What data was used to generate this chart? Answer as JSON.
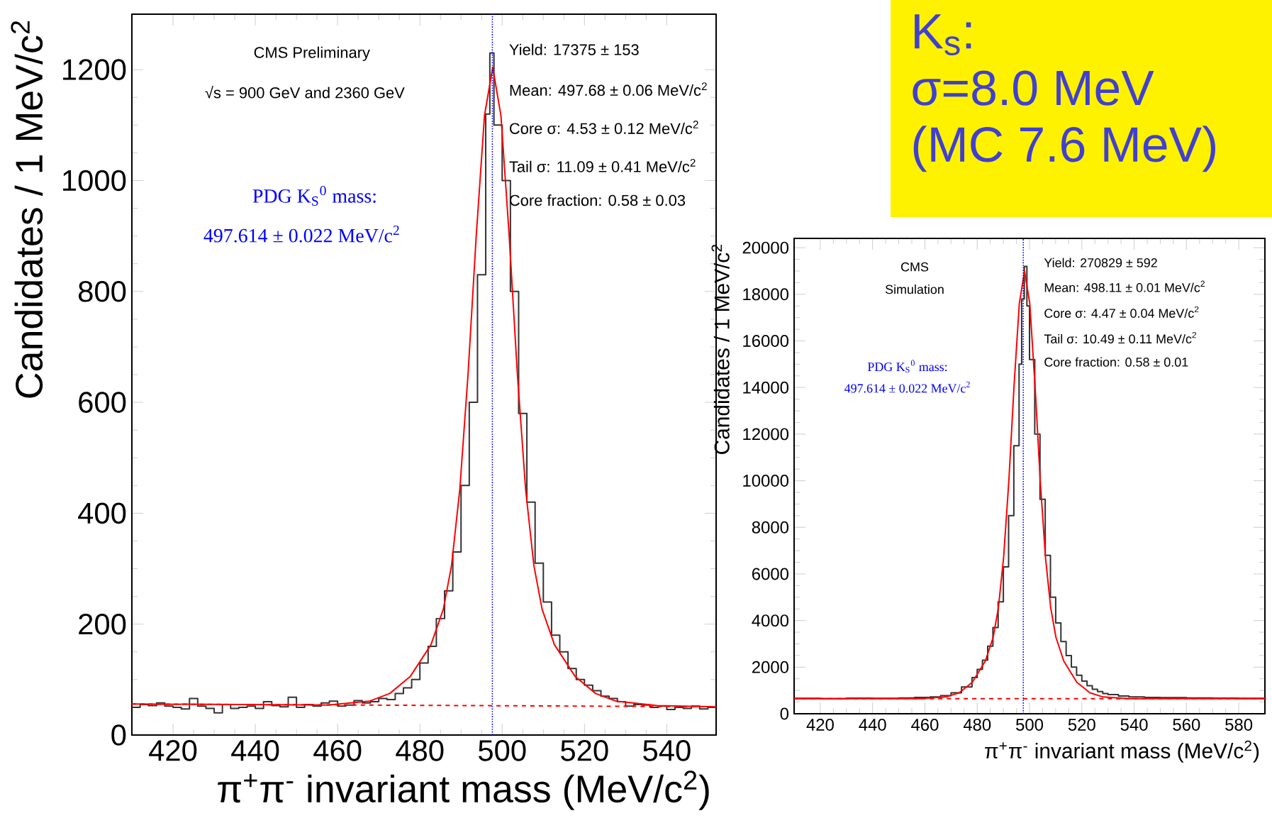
{
  "chart_data": [
    {
      "type": "step",
      "xlabel": "π$^{+}$π$^{-}$ invariant mass (MeV/c$^{2}$)",
      "ylabel": "Candidates / 1 MeV/c$^{2}$",
      "xlim": [
        410,
        552
      ],
      "ylim": [
        0,
        1300
      ],
      "xticks": [
        420,
        440,
        460,
        480,
        500,
        520,
        540
      ],
      "yticks": [
        0,
        200,
        400,
        600,
        800,
        1000,
        1200
      ],
      "series": [
        {
          "type": "step",
          "color": "#333333",
          "x": [
            410,
            412,
            414,
            416,
            418,
            420,
            422,
            424,
            426,
            428,
            430,
            432,
            434,
            436,
            438,
            440,
            442,
            444,
            446,
            448,
            450,
            452,
            454,
            456,
            458,
            460,
            462,
            464,
            466,
            468,
            470,
            472,
            474,
            476,
            478,
            480,
            482,
            484,
            486,
            488,
            490,
            492,
            494,
            496,
            497,
            498,
            500,
            502,
            504,
            506,
            508,
            510,
            512,
            514,
            516,
            518,
            520,
            522,
            524,
            526,
            528,
            530,
            532,
            534,
            536,
            538,
            540,
            542,
            544,
            546,
            548,
            550,
            552
          ],
          "values": [
            50,
            55,
            53,
            58,
            52,
            50,
            47,
            66,
            52,
            48,
            40,
            55,
            48,
            50,
            52,
            48,
            60,
            53,
            51,
            68,
            50,
            55,
            52,
            58,
            61,
            52,
            54,
            62,
            58,
            60,
            66,
            64,
            75,
            85,
            100,
            130,
            160,
            210,
            260,
            330,
            450,
            600,
            830,
            1120,
            1230,
            1100,
            1000,
            800,
            580,
            420,
            310,
            240,
            180,
            150,
            120,
            100,
            90,
            80,
            70,
            66,
            60,
            52,
            55,
            54,
            50,
            52,
            46,
            50,
            48,
            52,
            47,
            50,
            50
          ]
        },
        {
          "type": "line",
          "color": "#ff0000",
          "x": [
            410,
            457.7,
            467.7,
            472.7,
            477.7,
            482.7,
            485.7,
            487.7,
            489.7,
            491.7,
            493.7,
            495.7,
            497.7,
            499.7,
            501.7,
            503.7,
            505.7,
            507.7,
            509.7,
            512.7,
            517.7,
            522.7,
            527.7,
            537.7,
            552
          ],
          "values": [
            56,
            54,
            61,
            75,
            106,
            163,
            227,
            306,
            443,
            650,
            901,
            1117,
            1204,
            1117,
            901,
            650,
            443,
            306,
            227,
            163,
            106,
            75,
            61,
            53,
            51
          ]
        },
        {
          "type": "line",
          "color": "#ff0000",
          "line_style": "dashed",
          "x": [
            410,
            552
          ],
          "values": [
            56,
            51
          ]
        }
      ],
      "ref_lines": [
        {
          "axis": "x",
          "value": 497.614,
          "color": "#0000ff",
          "line_style": "dotted"
        }
      ],
      "annotations": [
        "CMS Preliminary",
        "√s = 900 GeV and 2360 GeV",
        "PDG K$_{S}$$^{0}$ mass:",
        "497.614 ± 0.022 MeV/c$^{2}$",
        "Yield: 17375 ± 153",
        "Mean: 497.68 ± 0.06 MeV/c$^{2}$",
        "Core σ: 4.53 ± 0.12 MeV/c$^{2}$",
        "Tail σ: 11.09 ± 0.41 MeV/c$^{2}$",
        "Core fraction: 0.58 ± 0.03"
      ]
    },
    {
      "type": "step",
      "xlabel": "π$^{+}$π$^{-}$ invariant mass (MeV/c$^{2}$)",
      "ylabel": "Candidates / 1 MeV/c$^{2}$",
      "xlim": [
        410,
        590
      ],
      "ylim": [
        0,
        20400
      ],
      "xticks": [
        420,
        440,
        460,
        480,
        500,
        520,
        540,
        560,
        580
      ],
      "yticks": [
        0,
        2000,
        4000,
        6000,
        8000,
        10000,
        12000,
        14000,
        16000,
        18000,
        20000
      ],
      "series": [
        {
          "type": "step",
          "color": "#333333",
          "x": [
            410,
            420,
            430,
            440,
            450,
            456,
            462,
            466,
            470,
            474,
            478,
            480,
            482,
            484,
            486,
            488,
            490,
            492,
            494,
            496,
            497,
            498,
            499,
            500,
            502,
            504,
            506,
            508,
            510,
            512,
            514,
            516,
            518,
            520,
            522,
            524,
            526,
            528,
            530,
            534,
            538,
            544,
            550,
            560,
            570,
            580,
            590
          ],
          "values": [
            660,
            650,
            670,
            660,
            680,
            700,
            720,
            780,
            900,
            1150,
            1550,
            1900,
            2300,
            2900,
            3700,
            4800,
            6300,
            8500,
            11500,
            15000,
            17800,
            19200,
            17500,
            15200,
            12000,
            9200,
            6800,
            5000,
            3900,
            3100,
            2500,
            2000,
            1650,
            1400,
            1200,
            1050,
            950,
            870,
            820,
            760,
            720,
            700,
            690,
            680,
            670,
            660,
            660
          ]
        },
        {
          "type": "line",
          "color": "#ff0000",
          "x": [
            410,
            458.1,
            468.1,
            473.1,
            478.1,
            483.1,
            486.1,
            488.1,
            490.1,
            492.1,
            494.1,
            496.1,
            498.1,
            500.1,
            502.1,
            504.1,
            506.1,
            508.1,
            510.1,
            513.1,
            518.1,
            523.1,
            528.1,
            538.1,
            590
          ],
          "values": [
            650,
            650,
            720,
            900,
            1350,
            2260,
            3280,
            4550,
            6710,
            10000,
            14100,
            17600,
            19000,
            17600,
            14100,
            10000,
            6710,
            4550,
            3280,
            2260,
            1350,
            900,
            720,
            650,
            650
          ]
        },
        {
          "type": "line",
          "color": "#ff0000",
          "line_style": "dashed",
          "x": [
            410,
            590
          ],
          "values": [
            650,
            650
          ]
        }
      ],
      "ref_lines": [
        {
          "axis": "x",
          "value": 497.614,
          "color": "#0000ff",
          "line_style": "dotted"
        }
      ],
      "annotations": [
        "CMS",
        "Simulation",
        "PDG K$_{S}$$^{0}$ mass:",
        "497.614 ± 0.022 MeV/c$^{2}$",
        "Yield: 270829 ± 592",
        "Mean: 498.11 ± 0.01 MeV/c$^{2}$",
        "Core σ: 4.47 ± 0.04 MeV/c$^{2}$",
        "Tail σ: 10.49 ± 0.11 MeV/c$^{2}$",
        "Core fraction: 0.58 ± 0.01"
      ]
    },
    {
      "type": "other",
      "annotations": [
        "K$_{s}$:",
        "σ=8.0 MeV",
        "(MC 7.6 MeV)"
      ]
    }
  ]
}
